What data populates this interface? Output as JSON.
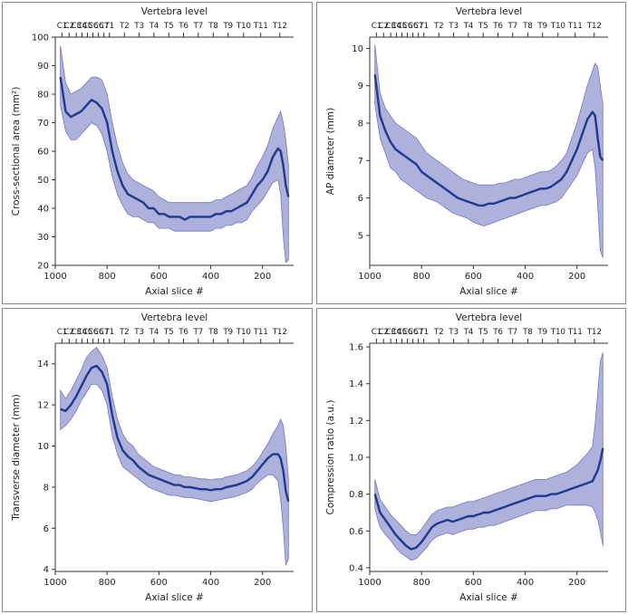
{
  "chart_data": [
    {
      "type": "area",
      "panel_label": "cross-sectional-area",
      "top_axis_label": "Vertebra level",
      "vertebra_levels": [
        "C1",
        "C2",
        "C3",
        "C4",
        "C5",
        "C6",
        "C6",
        "C7",
        "T1",
        "T2",
        "T3",
        "T4",
        "T5",
        "T6",
        "T7",
        "T8",
        "T9",
        "T10",
        "T11",
        "T12"
      ],
      "xlabel": "Axial slice #",
      "ylabel": "Cross-sectional area (mm²)",
      "xlim": [
        1000,
        80
      ],
      "ylim": [
        20,
        100
      ],
      "xticks": [
        1000,
        800,
        600,
        400,
        200
      ],
      "yticks": [
        20,
        30,
        40,
        50,
        60,
        70,
        80,
        90,
        100
      ],
      "series": [
        {
          "name": "mean",
          "x": [
            980,
            960,
            940,
            920,
            900,
            880,
            860,
            840,
            820,
            800,
            780,
            760,
            740,
            720,
            700,
            680,
            660,
            640,
            620,
            600,
            580,
            560,
            540,
            520,
            500,
            480,
            460,
            440,
            420,
            400,
            380,
            360,
            340,
            320,
            300,
            280,
            260,
            240,
            220,
            200,
            180,
            160,
            140,
            130,
            120,
            110,
            100
          ],
          "mean": [
            86,
            74,
            72,
            73,
            74,
            76,
            78,
            77,
            75,
            70,
            60,
            53,
            48,
            45,
            44,
            43,
            42,
            40,
            40,
            38,
            38,
            37,
            37,
            37,
            36,
            37,
            37,
            37,
            37,
            37,
            38,
            38,
            39,
            39,
            40,
            41,
            42,
            45,
            48,
            50,
            53,
            58,
            61,
            60,
            55,
            48,
            44
          ],
          "upper": [
            97,
            84,
            80,
            81,
            82,
            84,
            86,
            86,
            85,
            80,
            70,
            62,
            56,
            52,
            50,
            49,
            48,
            47,
            46,
            44,
            43,
            42,
            42,
            42,
            42,
            42,
            42,
            42,
            42,
            42,
            43,
            43,
            44,
            45,
            46,
            47,
            48,
            51,
            55,
            58,
            62,
            68,
            72,
            74,
            70,
            64,
            55
          ],
          "lower": [
            76,
            67,
            64,
            64,
            66,
            68,
            70,
            69,
            66,
            60,
            51,
            45,
            41,
            38,
            37,
            37,
            36,
            35,
            35,
            33,
            33,
            33,
            32,
            32,
            32,
            32,
            32,
            32,
            32,
            32,
            33,
            33,
            34,
            34,
            35,
            35,
            36,
            39,
            41,
            43,
            46,
            49,
            50,
            45,
            30,
            21,
            22
          ]
        }
      ]
    },
    {
      "type": "area",
      "panel_label": "ap-diameter",
      "top_axis_label": "Vertebra level",
      "vertebra_levels": [
        "C1",
        "C2",
        "C3",
        "C4",
        "C5",
        "C6",
        "C6",
        "C7",
        "T1",
        "T2",
        "T3",
        "T4",
        "T5",
        "T6",
        "T7",
        "T8",
        "T9",
        "T10",
        "T11",
        "T12"
      ],
      "xlabel": "Axial slice #",
      "ylabel": "AP diameter (mm)",
      "xlim": [
        1000,
        80
      ],
      "ylim": [
        4.2,
        10.3
      ],
      "xticks": [
        1000,
        800,
        600,
        400,
        200
      ],
      "yticks": [
        5,
        6,
        7,
        8,
        9,
        10
      ],
      "series": [
        {
          "name": "mean",
          "x": [
            980,
            960,
            940,
            920,
            900,
            880,
            860,
            840,
            820,
            800,
            780,
            760,
            740,
            720,
            700,
            680,
            660,
            640,
            620,
            600,
            580,
            560,
            540,
            520,
            500,
            480,
            460,
            440,
            420,
            400,
            380,
            360,
            340,
            320,
            300,
            280,
            260,
            240,
            220,
            200,
            180,
            160,
            140,
            130,
            120,
            110,
            100
          ],
          "mean": [
            9.3,
            8.2,
            7.8,
            7.5,
            7.3,
            7.2,
            7.1,
            7.0,
            6.9,
            6.7,
            6.6,
            6.5,
            6.4,
            6.3,
            6.2,
            6.1,
            6.0,
            5.95,
            5.9,
            5.85,
            5.8,
            5.8,
            5.85,
            5.85,
            5.9,
            5.95,
            6.0,
            6.0,
            6.05,
            6.1,
            6.15,
            6.2,
            6.25,
            6.25,
            6.3,
            6.4,
            6.5,
            6.7,
            7.0,
            7.3,
            7.7,
            8.1,
            8.3,
            8.2,
            7.6,
            7.1,
            7.0
          ],
          "upper": [
            10.1,
            8.8,
            8.4,
            8.2,
            8.0,
            7.9,
            7.8,
            7.7,
            7.6,
            7.4,
            7.2,
            7.1,
            7.0,
            6.9,
            6.8,
            6.7,
            6.6,
            6.5,
            6.45,
            6.4,
            6.35,
            6.35,
            6.35,
            6.35,
            6.4,
            6.4,
            6.45,
            6.5,
            6.5,
            6.55,
            6.6,
            6.65,
            6.7,
            6.7,
            6.75,
            6.85,
            7.0,
            7.2,
            7.6,
            8.0,
            8.5,
            9.0,
            9.4,
            9.6,
            9.5,
            9.0,
            8.5
          ],
          "lower": [
            8.5,
            7.6,
            7.2,
            6.8,
            6.7,
            6.5,
            6.4,
            6.3,
            6.2,
            6.1,
            6.0,
            5.95,
            5.9,
            5.8,
            5.7,
            5.6,
            5.55,
            5.5,
            5.45,
            5.35,
            5.3,
            5.25,
            5.3,
            5.35,
            5.4,
            5.45,
            5.5,
            5.55,
            5.6,
            5.65,
            5.7,
            5.75,
            5.8,
            5.8,
            5.85,
            5.9,
            6.0,
            6.2,
            6.4,
            6.6,
            6.9,
            7.2,
            7.3,
            6.8,
            5.8,
            4.6,
            4.4
          ]
        }
      ]
    },
    {
      "type": "area",
      "panel_label": "transverse-diameter",
      "top_axis_label": "Vertebra level",
      "vertebra_levels": [
        "C1",
        "C2",
        "C3",
        "C4",
        "C5",
        "C6",
        "C6",
        "C7",
        "T1",
        "T2",
        "T3",
        "T4",
        "T5",
        "T6",
        "T7",
        "T8",
        "T9",
        "T10",
        "T11",
        "T12"
      ],
      "xlabel": "Axial slice #",
      "ylabel": "Transverse diameter (mm)",
      "xlim": [
        1000,
        80
      ],
      "ylim": [
        3.9,
        15
      ],
      "xticks": [
        1000,
        800,
        600,
        400,
        200
      ],
      "yticks": [
        4,
        6,
        8,
        10,
        12,
        14
      ],
      "series": [
        {
          "name": "mean",
          "x": [
            980,
            960,
            940,
            920,
            900,
            880,
            860,
            840,
            820,
            800,
            780,
            760,
            740,
            720,
            700,
            680,
            660,
            640,
            620,
            600,
            580,
            560,
            540,
            520,
            500,
            480,
            460,
            440,
            420,
            400,
            380,
            360,
            340,
            320,
            300,
            280,
            260,
            240,
            220,
            200,
            180,
            160,
            140,
            130,
            120,
            110,
            100
          ],
          "mean": [
            11.8,
            11.7,
            12.0,
            12.4,
            12.9,
            13.4,
            13.8,
            13.9,
            13.6,
            13.0,
            11.5,
            10.4,
            9.8,
            9.5,
            9.3,
            9.0,
            8.8,
            8.6,
            8.5,
            8.4,
            8.3,
            8.2,
            8.1,
            8.1,
            8.0,
            8.0,
            7.95,
            7.9,
            7.9,
            7.85,
            7.9,
            7.9,
            8.0,
            8.05,
            8.1,
            8.2,
            8.3,
            8.5,
            8.8,
            9.1,
            9.4,
            9.6,
            9.6,
            9.4,
            8.8,
            7.8,
            7.3
          ],
          "upper": [
            12.7,
            12.3,
            12.7,
            13.2,
            13.7,
            14.3,
            14.6,
            14.8,
            14.4,
            13.8,
            12.4,
            11.3,
            10.6,
            10.2,
            10.0,
            9.6,
            9.4,
            9.2,
            9.0,
            8.9,
            8.8,
            8.7,
            8.6,
            8.6,
            8.5,
            8.5,
            8.45,
            8.4,
            8.4,
            8.35,
            8.4,
            8.4,
            8.5,
            8.55,
            8.6,
            8.7,
            8.8,
            9.0,
            9.3,
            9.7,
            10.1,
            10.6,
            11.0,
            11.3,
            11.0,
            10.0,
            8.4
          ],
          "lower": [
            10.8,
            11.0,
            11.3,
            11.7,
            12.2,
            12.6,
            13.0,
            13.0,
            12.7,
            12.0,
            10.5,
            9.6,
            9.0,
            8.8,
            8.6,
            8.4,
            8.2,
            8.0,
            7.9,
            7.8,
            7.7,
            7.6,
            7.6,
            7.55,
            7.5,
            7.5,
            7.45,
            7.4,
            7.35,
            7.3,
            7.35,
            7.4,
            7.45,
            7.5,
            7.55,
            7.65,
            7.75,
            7.9,
            8.2,
            8.4,
            8.6,
            8.6,
            8.3,
            7.4,
            6.0,
            4.2,
            4.5
          ]
        }
      ]
    },
    {
      "type": "area",
      "panel_label": "compression-ratio",
      "top_axis_label": "Vertebra level",
      "vertebra_levels": [
        "C1",
        "C2",
        "C3",
        "C4",
        "C5",
        "C6",
        "C6",
        "C7",
        "T1",
        "T2",
        "T3",
        "T4",
        "T5",
        "T6",
        "T7",
        "T8",
        "T9",
        "T10",
        "T11",
        "T12"
      ],
      "xlabel": "Axial slice #",
      "ylabel": "Compression ratio (a.u.)",
      "xlim": [
        1000,
        80
      ],
      "ylim": [
        0.38,
        1.62
      ],
      "xticks": [
        1000,
        800,
        600,
        400,
        200
      ],
      "yticks": [
        0.4,
        0.6,
        0.8,
        1.0,
        1.2,
        1.4,
        1.6
      ],
      "series": [
        {
          "name": "mean",
          "x": [
            980,
            960,
            940,
            920,
            900,
            880,
            860,
            840,
            820,
            800,
            780,
            760,
            740,
            720,
            700,
            680,
            660,
            640,
            620,
            600,
            580,
            560,
            540,
            520,
            500,
            480,
            460,
            440,
            420,
            400,
            380,
            360,
            340,
            320,
            300,
            280,
            260,
            240,
            220,
            200,
            180,
            160,
            140,
            130,
            120,
            110,
            100
          ],
          "mean": [
            0.8,
            0.7,
            0.66,
            0.62,
            0.58,
            0.55,
            0.52,
            0.5,
            0.51,
            0.54,
            0.58,
            0.62,
            0.64,
            0.65,
            0.66,
            0.65,
            0.66,
            0.67,
            0.68,
            0.68,
            0.69,
            0.7,
            0.7,
            0.71,
            0.72,
            0.73,
            0.74,
            0.75,
            0.76,
            0.77,
            0.78,
            0.79,
            0.79,
            0.79,
            0.8,
            0.8,
            0.81,
            0.82,
            0.83,
            0.84,
            0.85,
            0.86,
            0.87,
            0.9,
            0.93,
            0.98,
            1.05
          ],
          "upper": [
            0.88,
            0.77,
            0.73,
            0.69,
            0.66,
            0.63,
            0.6,
            0.58,
            0.58,
            0.61,
            0.65,
            0.69,
            0.71,
            0.72,
            0.73,
            0.73,
            0.74,
            0.75,
            0.76,
            0.76,
            0.77,
            0.78,
            0.79,
            0.8,
            0.81,
            0.82,
            0.83,
            0.84,
            0.85,
            0.86,
            0.87,
            0.88,
            0.88,
            0.88,
            0.89,
            0.9,
            0.91,
            0.92,
            0.94,
            0.96,
            0.99,
            1.02,
            1.06,
            1.18,
            1.35,
            1.52,
            1.57
          ],
          "lower": [
            0.72,
            0.62,
            0.58,
            0.55,
            0.51,
            0.48,
            0.46,
            0.44,
            0.45,
            0.48,
            0.51,
            0.55,
            0.57,
            0.58,
            0.59,
            0.58,
            0.59,
            0.6,
            0.61,
            0.61,
            0.62,
            0.62,
            0.63,
            0.63,
            0.64,
            0.65,
            0.66,
            0.67,
            0.68,
            0.69,
            0.7,
            0.71,
            0.71,
            0.71,
            0.72,
            0.72,
            0.73,
            0.74,
            0.74,
            0.74,
            0.74,
            0.74,
            0.73,
            0.7,
            0.66,
            0.6,
            0.52
          ]
        }
      ]
    }
  ]
}
